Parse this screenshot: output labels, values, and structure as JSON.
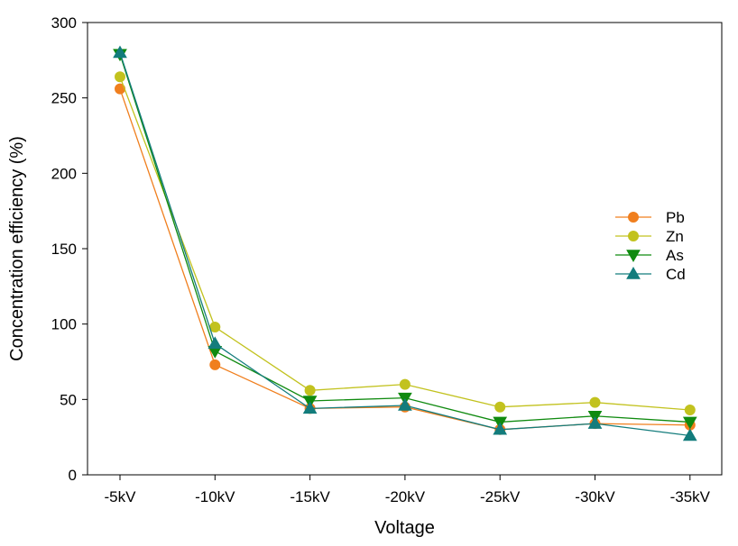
{
  "chart_data": {
    "type": "line",
    "title": "",
    "xlabel": "Voltage",
    "ylabel": "Concentration efficiency (%)",
    "categories": [
      "-5kV",
      "-10kV",
      "-15kV",
      "-20kV",
      "-25kV",
      "-30kV",
      "-35kV"
    ],
    "ylim": [
      0,
      300
    ],
    "yticks": [
      0,
      50,
      100,
      150,
      200,
      250,
      300
    ],
    "grid": false,
    "legend_position": "right",
    "series": [
      {
        "name": "Pb",
        "color": "#f07f1e",
        "marker": "circle",
        "values": [
          256,
          73,
          44,
          45,
          30,
          34,
          33
        ]
      },
      {
        "name": "Zn",
        "color": "#c2c21e",
        "marker": "circle",
        "values": [
          264,
          98,
          56,
          60,
          45,
          48,
          43
        ]
      },
      {
        "name": "As",
        "color": "#0f8a0f",
        "marker": "triangle-down",
        "values": [
          279,
          82,
          49,
          51,
          35,
          39,
          35
        ]
      },
      {
        "name": "Cd",
        "color": "#137c7c",
        "marker": "triangle-up",
        "values": [
          280,
          87,
          44,
          46,
          30,
          34,
          26
        ]
      }
    ]
  }
}
